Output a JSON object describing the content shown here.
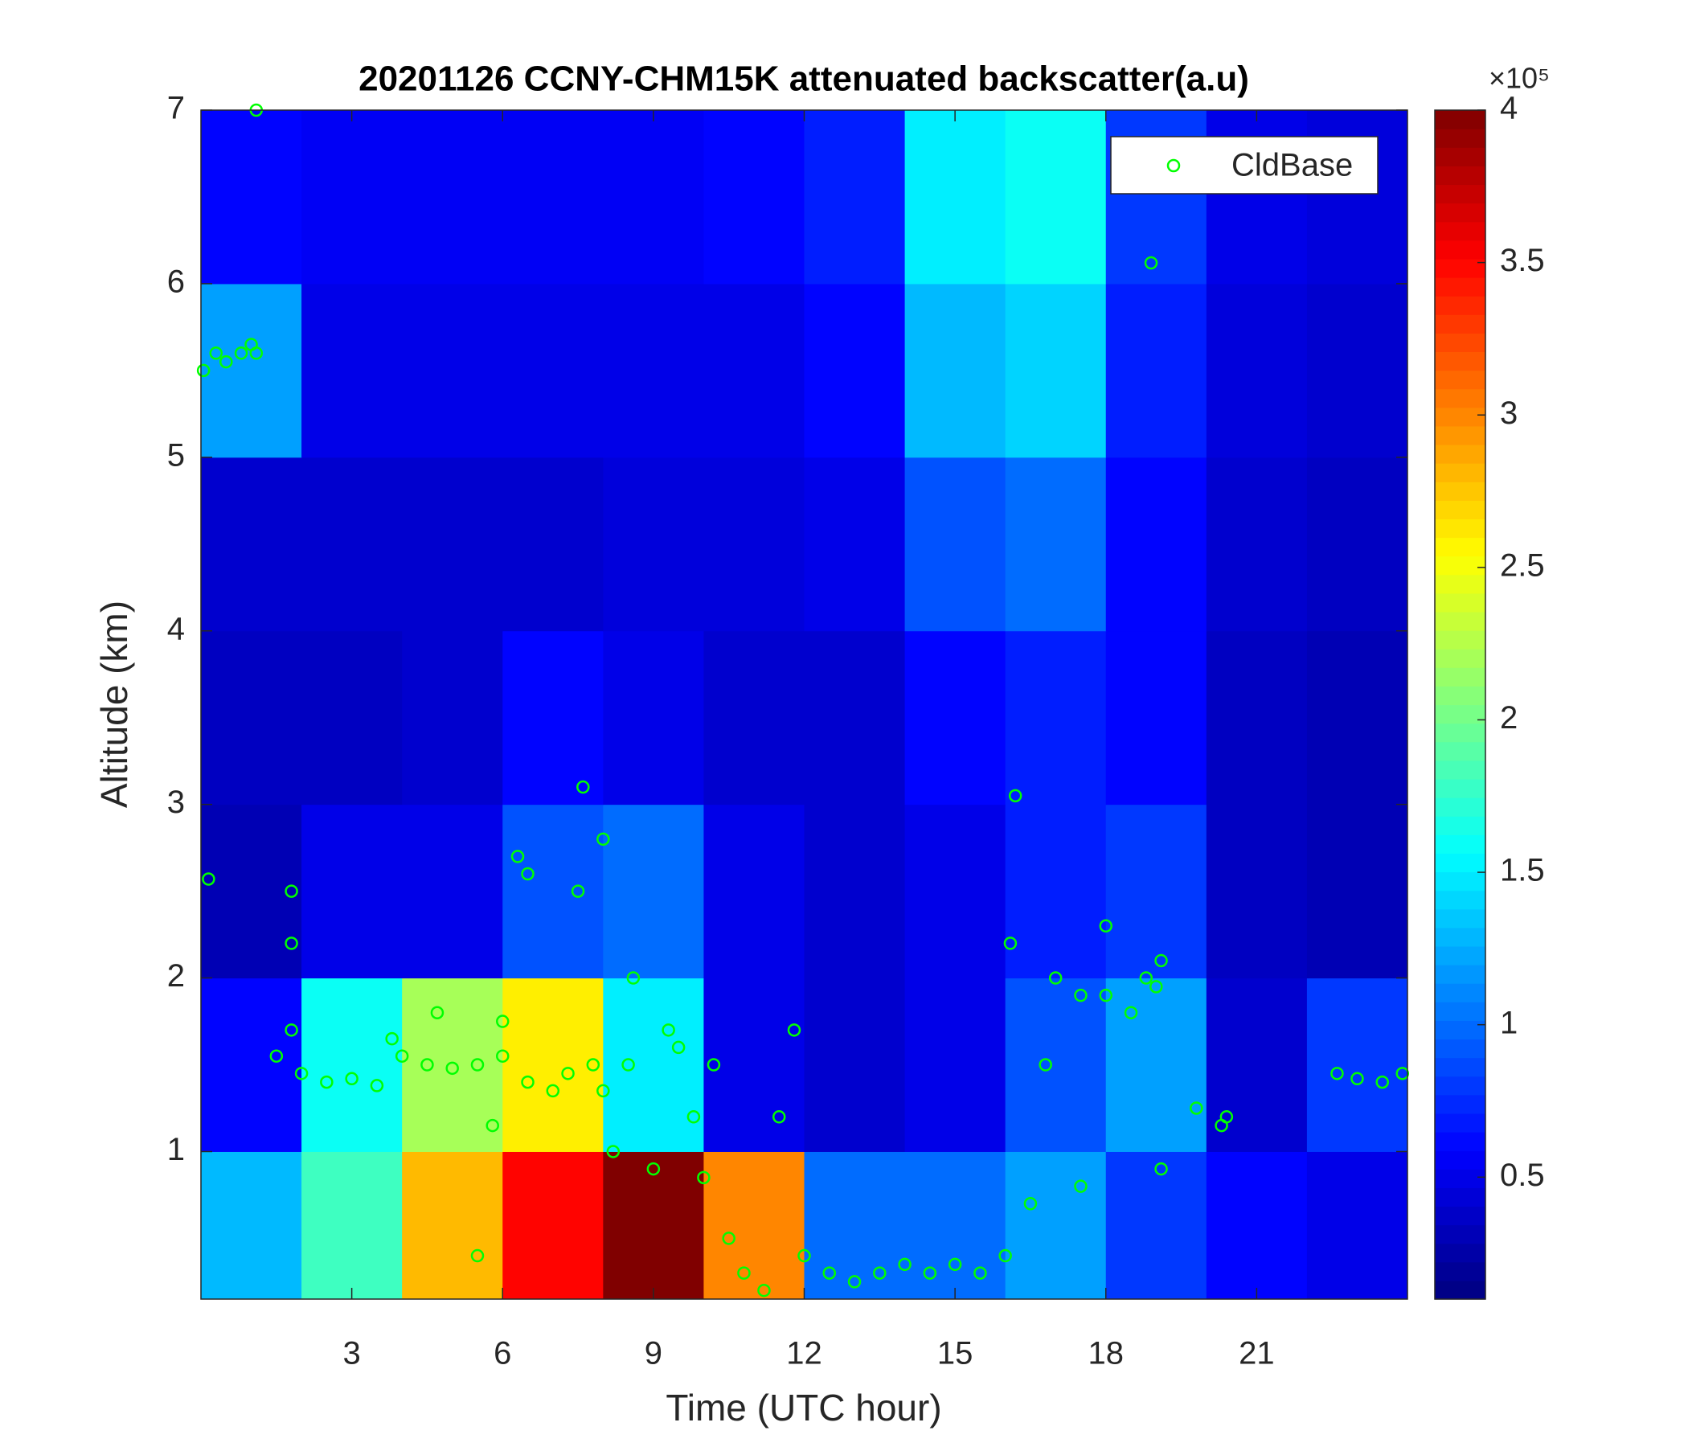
{
  "chart_data": {
    "type": "heatmap",
    "title": "20201126 CCNY-CHM15K attenuated backscatter(a.u)",
    "x_label": "Time (UTC hour)",
    "y_label": "Altitude (km)",
    "xlim": [
      0,
      24
    ],
    "ylim": [
      0.15,
      7
    ],
    "xticks": [
      3,
      6,
      9,
      12,
      15,
      18,
      21
    ],
    "yticks": [
      1,
      2,
      3,
      4,
      5,
      6,
      7
    ],
    "xbins": [
      0,
      2,
      4,
      6,
      8,
      10,
      12,
      14,
      16,
      18,
      20,
      22,
      24
    ],
    "ybins": [
      0.15,
      1,
      2,
      3,
      4,
      5,
      6,
      7
    ],
    "z": [
      [
        1.3,
        1.8,
        2.8,
        3.5,
        4,
        3,
        1.0,
        1.0,
        1.2,
        0.8,
        0.6,
        0.5
      ],
      [
        0.6,
        1.6,
        2.2,
        2.6,
        1.5,
        0.5,
        0.4,
        0.5,
        0.9,
        1.2,
        0.4,
        0.8
      ],
      [
        0.3,
        0.5,
        0.5,
        0.9,
        1.0,
        0.5,
        0.4,
        0.5,
        0.7,
        0.8,
        0.35,
        0.3
      ],
      [
        0.35,
        0.35,
        0.4,
        0.6,
        0.5,
        0.4,
        0.4,
        0.6,
        0.7,
        0.6,
        0.35,
        0.3
      ],
      [
        0.4,
        0.4,
        0.4,
        0.4,
        0.45,
        0.45,
        0.5,
        0.9,
        1.0,
        0.6,
        0.4,
        0.35
      ],
      [
        1.2,
        0.5,
        0.5,
        0.5,
        0.5,
        0.5,
        0.6,
        1.3,
        1.4,
        0.7,
        0.45,
        0.4
      ],
      [
        0.6,
        0.55,
        0.55,
        0.55,
        0.55,
        0.6,
        0.7,
        1.5,
        1.6,
        0.8,
        0.5,
        0.45
      ]
    ],
    "colormap": "jet",
    "clim": [
      0.1,
      4
    ],
    "colorbar_ticks": [
      0.5,
      1,
      1.5,
      2,
      2.5,
      3,
      3.5,
      4
    ],
    "colorbar_multiplier": "×10⁵",
    "legend_position": "upper right",
    "series": [
      {
        "name": "CldBase",
        "color": "#00ff00",
        "x": [
          0.05,
          0.3,
          0.5,
          0.8,
          1.0,
          1.1,
          1.1,
          0.15,
          1.8,
          1.8,
          1.8,
          1.5,
          2,
          2.5,
          3,
          3.5,
          3.8,
          4,
          4.7,
          4.5,
          5,
          5.5,
          5.5,
          6,
          6,
          5.8,
          6.3,
          6.5,
          6.5,
          7,
          7.3,
          7.5,
          7.6,
          7.8,
          8,
          8,
          8.2,
          8.5,
          8.6,
          9,
          9.3,
          9.5,
          9.8,
          10,
          10.2,
          10.5,
          10.8,
          11.2,
          11.5,
          11.8,
          12,
          12.5,
          13,
          13.5,
          14,
          14.5,
          15,
          15.5,
          16,
          16.1,
          16.2,
          16.5,
          16.8,
          17,
          17.5,
          17.5,
          18,
          18,
          18.5,
          18.8,
          19,
          19.1,
          19.1,
          18.9,
          19.8,
          20.3,
          20.4,
          22.6,
          23,
          23.5,
          23.9
        ],
        "values": [
          5.5,
          5.6,
          5.55,
          5.6,
          5.65,
          7.0,
          5.6,
          2.57,
          2.5,
          2.2,
          1.7,
          1.55,
          1.45,
          1.4,
          1.42,
          1.38,
          1.65,
          1.55,
          1.8,
          1.5,
          1.48,
          1.5,
          0.4,
          1.55,
          1.75,
          1.15,
          2.7,
          2.6,
          1.4,
          1.35,
          1.45,
          2.5,
          3.1,
          1.5,
          1.35,
          2.8,
          1.0,
          1.5,
          2.0,
          0.9,
          1.7,
          1.6,
          1.2,
          0.85,
          1.5,
          0.5,
          0.3,
          0.2,
          1.2,
          1.7,
          0.4,
          0.3,
          0.25,
          0.3,
          0.35,
          0.3,
          0.35,
          0.3,
          0.4,
          2.2,
          3.05,
          0.7,
          1.5,
          2.0,
          1.9,
          0.8,
          2.3,
          1.9,
          1.8,
          2.0,
          1.95,
          2.1,
          0.9,
          6.12,
          1.25,
          1.15,
          1.2,
          1.45,
          1.42,
          1.4,
          1.45
        ]
      }
    ]
  }
}
